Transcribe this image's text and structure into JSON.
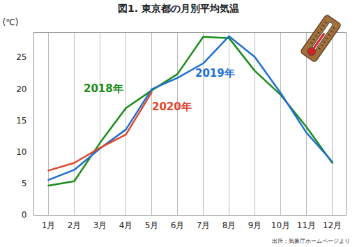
{
  "chart_data": {
    "type": "line",
    "title": "図1. 東京都の月別平均気温",
    "y_label": "(℃)",
    "source": "出所：気象庁ホームページより",
    "categories": [
      "1月",
      "2月",
      "3月",
      "4月",
      "5月",
      "6月",
      "7月",
      "8月",
      "9月",
      "10月",
      "11月",
      "12月"
    ],
    "series": [
      {
        "name": "2018年",
        "color": "#1a8c1a",
        "values": [
          4.7,
          5.4,
          11.5,
          17.0,
          19.8,
          22.4,
          28.3,
          28.1,
          22.9,
          19.1,
          14.0,
          8.3
        ]
      },
      {
        "name": "2019年",
        "color": "#1f6fd1",
        "values": [
          5.6,
          7.2,
          10.6,
          13.6,
          20.0,
          21.8,
          24.1,
          28.4,
          25.1,
          19.4,
          13.1,
          8.5
        ]
      },
      {
        "name": "2020年",
        "color": "#e0462a",
        "values": [
          7.1,
          8.3,
          10.7,
          12.8,
          19.5,
          null,
          null,
          null,
          null,
          null,
          null,
          null
        ]
      }
    ],
    "ylim": [
      0,
      29
    ],
    "yticks": [
      0,
      5,
      10,
      15,
      20,
      25
    ],
    "grid": "x"
  }
}
